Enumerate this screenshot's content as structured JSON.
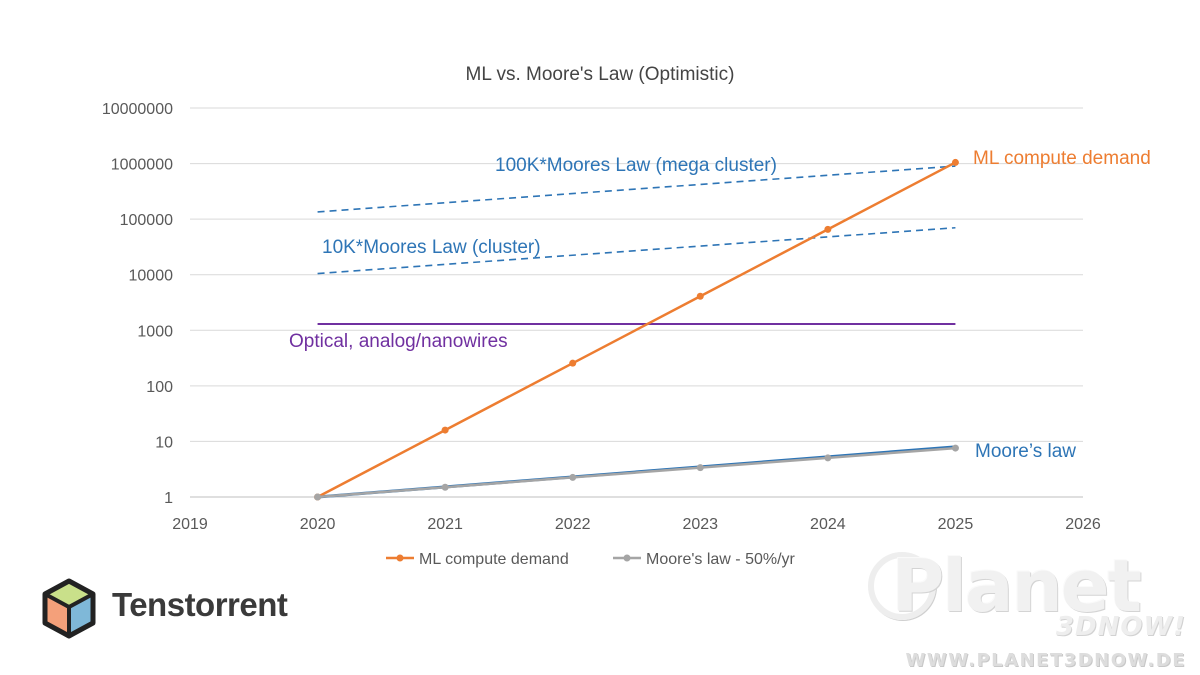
{
  "chart_data": {
    "type": "line",
    "title": "ML vs. Moore's Law (Optimistic)",
    "y_scale": "log10",
    "xlim": [
      2019,
      2026
    ],
    "ylim": [
      1,
      10000000
    ],
    "x_ticks": [
      2019,
      2020,
      2021,
      2022,
      2023,
      2024,
      2025,
      2026
    ],
    "y_ticks": [
      {
        "value": 1,
        "label": "1"
      },
      {
        "value": 10,
        "label": "10"
      },
      {
        "value": 100,
        "label": "100"
      },
      {
        "value": 1000,
        "label": "1000"
      },
      {
        "value": 10000,
        "label": "10000"
      },
      {
        "value": 100000,
        "label": "100000"
      },
      {
        "value": 1000000,
        "label": "1000000"
      },
      {
        "value": 10000000,
        "label": "10000000"
      }
    ],
    "grid": "horizontal",
    "legend_position": "bottom",
    "series": [
      {
        "name": "ML compute demand",
        "color": "#ED7D31",
        "x": [
          2020,
          2021,
          2022,
          2023,
          2024,
          2025
        ],
        "y": [
          1,
          16,
          256,
          4096,
          65536,
          1048576
        ]
      },
      {
        "name": "Moore's law - 50%/yr",
        "color": "#A5A5A5",
        "x": [
          2020,
          2021,
          2022,
          2023,
          2024,
          2025
        ],
        "y": [
          1,
          1.5,
          2.25,
          3.375,
          5.0625,
          7.59375
        ]
      }
    ],
    "reference_lines": [
      {
        "label": "Moore’s law",
        "color": "#2E75B6",
        "style": "solid",
        "x": [
          2020,
          2025
        ],
        "y": [
          1,
          8
        ]
      },
      {
        "label": "Optical, analog/nanowires",
        "color": "#7030A0",
        "style": "solid",
        "x": [
          2020,
          2025
        ],
        "y": [
          1300,
          1300
        ]
      },
      {
        "label": "10K*Moores Law (cluster)",
        "color": "#2E75B6",
        "style": "dashed",
        "x": [
          2020,
          2025
        ],
        "y": [
          10500,
          70000
        ]
      },
      {
        "label": "100K*Moores Law (mega cluster)",
        "color": "#2E75B6",
        "style": "dashed",
        "x": [
          2020,
          2025
        ],
        "y": [
          135000,
          900000
        ]
      }
    ],
    "annotations": [
      {
        "text": "ML compute demand",
        "color": "#ED7D31"
      }
    ]
  },
  "logo": {
    "text": "Tenstorrent"
  },
  "watermark": {
    "main": "Planet",
    "sub": "3DNOW!",
    "url": "WWW.PLANET3DNOW.DE"
  }
}
